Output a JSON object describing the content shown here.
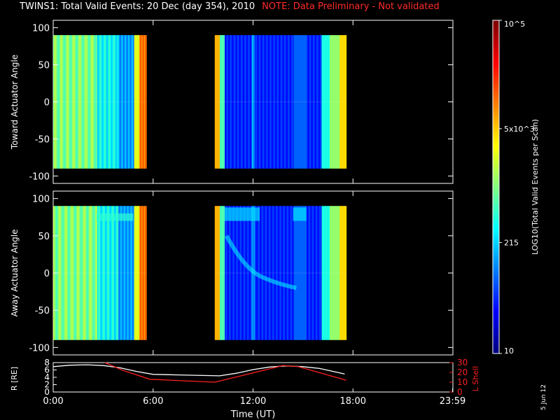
{
  "title": {
    "main": "TWINS1: Total Valid Events: 20 Dec (day 354), 2010",
    "note": "NOTE: Data Preliminary - Not validated",
    "note_color": "#ff2a2a"
  },
  "date_stamp": "5 Jun 12",
  "chart_data": [
    {
      "type": "heatmap",
      "name": "toward",
      "ylabel": "Toward Actuator Angle",
      "ylim": [
        -110,
        110
      ],
      "yticks": [
        100,
        50,
        0,
        -50,
        -100
      ],
      "xlim_hours": [
        0,
        24
      ],
      "segments": [
        {
          "start_hour": 0.0,
          "end_hour": 5.6,
          "angle_range": [
            -90,
            90
          ]
        },
        {
          "start_hour": 9.7,
          "end_hour": 17.6,
          "angle_range": [
            -90,
            90
          ]
        }
      ],
      "colorbar": {
        "label": "LOG10(Total Valid Events per Scan)",
        "scale": "log",
        "range": [
          10,
          100000
        ],
        "tick_labels": [
          "10",
          "215",
          "5x10^3",
          "10^5"
        ],
        "tick_values": [
          10,
          215,
          5000,
          100000
        ]
      }
    },
    {
      "type": "heatmap",
      "name": "away",
      "ylabel": "Away Actuator Angle",
      "ylim": [
        -110,
        110
      ],
      "yticks": [
        100,
        50,
        0,
        -50,
        -100
      ],
      "xlim_hours": [
        0,
        24
      ],
      "segments": [
        {
          "start_hour": 0.0,
          "end_hour": 5.6,
          "angle_range": [
            -90,
            90
          ]
        },
        {
          "start_hour": 9.7,
          "end_hour": 17.6,
          "angle_range": [
            -90,
            90
          ]
        }
      ]
    },
    {
      "type": "line",
      "name": "orbit",
      "ylabel": "R [RE]",
      "ylim": [
        0,
        8
      ],
      "yticks": [
        0,
        2,
        4,
        6,
        8
      ],
      "y2label": "L Shell",
      "y2lim": [
        0,
        30
      ],
      "y2ticks": [
        0,
        10,
        20,
        30
      ],
      "xlabel": "Time (UT)",
      "xtick_labels": [
        "0:00",
        "6:00",
        "12:00",
        "18:00",
        "23:59"
      ],
      "xtick_hours": [
        0,
        6,
        12,
        18,
        23.98
      ],
      "series": [
        {
          "color": "#ffffff",
          "axis": "left",
          "x": [
            0,
            1,
            2,
            3,
            4,
            5,
            6,
            7,
            8,
            9,
            10,
            11,
            12,
            13,
            14,
            15,
            16,
            17,
            17.5
          ],
          "y": [
            6.9,
            7.3,
            7.4,
            7.2,
            6.6,
            5.6,
            4.8,
            4.7,
            4.6,
            4.5,
            4.4,
            5.1,
            6.1,
            6.8,
            7.1,
            6.9,
            6.4,
            5.4,
            4.9
          ]
        },
        {
          "color": "#ff2020",
          "axis": "right",
          "x": [
            3.1,
            4.2,
            5.8,
            9.7,
            13.8,
            14.7,
            17.6
          ],
          "y": [
            32,
            22,
            13,
            10,
            27,
            26,
            12
          ]
        }
      ]
    }
  ]
}
